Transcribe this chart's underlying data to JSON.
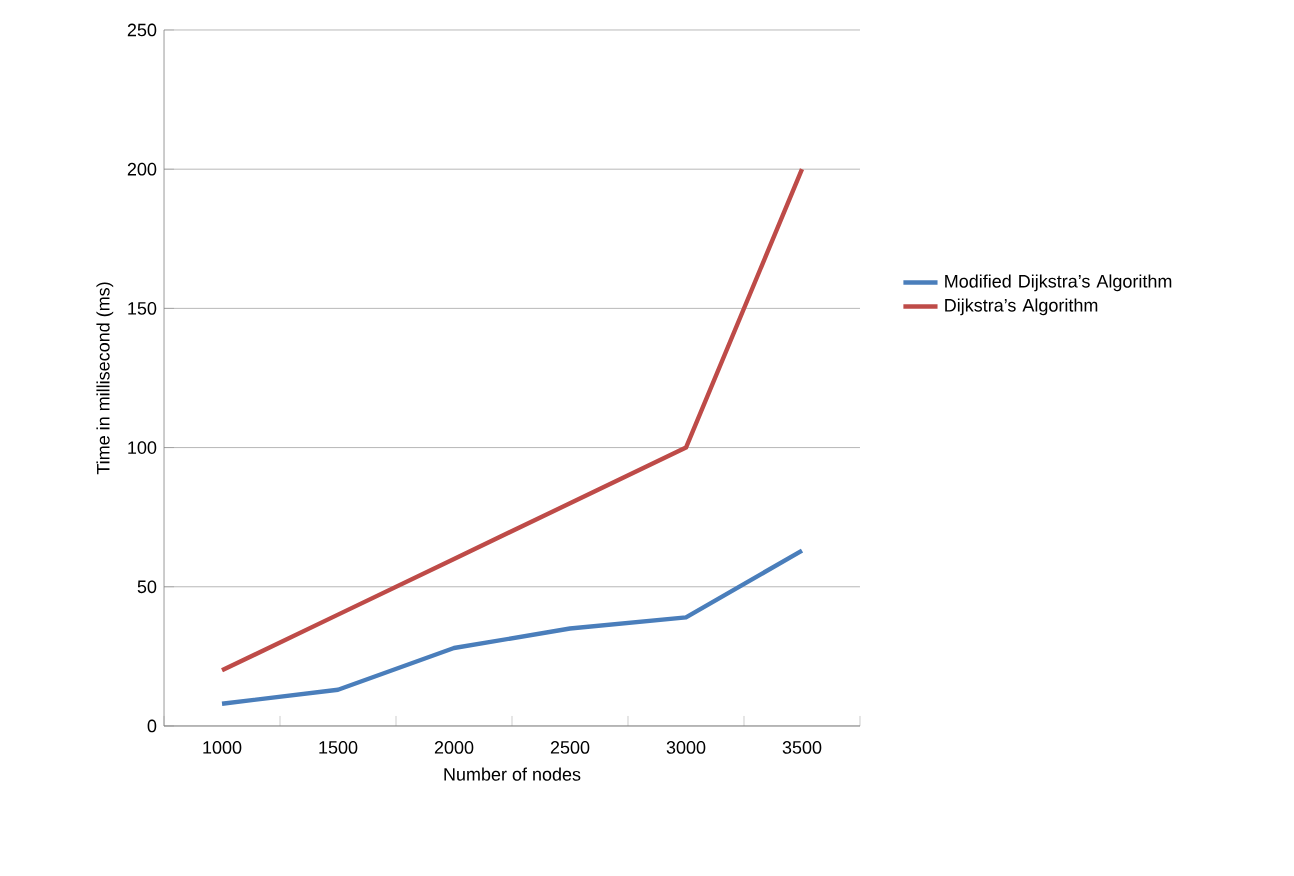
{
  "chart_data": {
    "type": "line",
    "xlabel": "Number of nodes",
    "ylabel": "Time in millisecond (ms)",
    "categories": [
      "1000",
      "1500",
      "2000",
      "2500",
      "3000",
      "3500"
    ],
    "series": [
      {
        "name": "Modified Dijkstra’s Algorithm",
        "color": "#4a7ebb",
        "values": [
          8,
          13,
          28,
          35,
          39,
          63
        ]
      },
      {
        "name": "Dijkstra’s Algorithm",
        "color": "#be4b48",
        "values": [
          20,
          40,
          60,
          80,
          100,
          200
        ]
      }
    ],
    "ylim": [
      0,
      250
    ],
    "yticks": [
      0,
      50,
      100,
      150,
      200,
      250
    ],
    "grid": "y",
    "legend": "right",
    "marker": "none",
    "line_style": "solid"
  }
}
